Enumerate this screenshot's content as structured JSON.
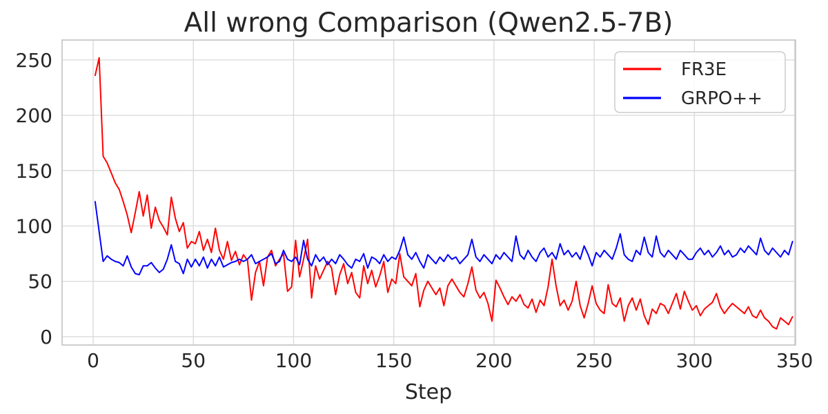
{
  "chart_data": {
    "type": "line",
    "title": "All wrong Comparison (Qwen2.5-7B)",
    "xlabel": "Step",
    "ylabel": "",
    "x_ticks": [
      0,
      50,
      100,
      150,
      200,
      250,
      300,
      350
    ],
    "y_ticks": [
      0,
      50,
      100,
      150,
      200,
      250
    ],
    "xlim": [
      -15.5,
      350.5
    ],
    "ylim": [
      -7.5,
      268
    ],
    "grid": true,
    "legend_position": "upper right",
    "x": [
      1,
      3,
      5,
      7,
      9,
      11,
      13,
      15,
      17,
      19,
      21,
      23,
      25,
      27,
      29,
      31,
      33,
      35,
      37,
      39,
      41,
      43,
      45,
      47,
      49,
      51,
      53,
      55,
      57,
      59,
      61,
      63,
      65,
      67,
      69,
      71,
      73,
      75,
      77,
      79,
      81,
      83,
      85,
      87,
      89,
      91,
      93,
      95,
      97,
      99,
      101,
      103,
      105,
      107,
      109,
      111,
      113,
      115,
      117,
      119,
      121,
      123,
      125,
      127,
      129,
      131,
      133,
      135,
      137,
      139,
      141,
      143,
      145,
      147,
      149,
      151,
      153,
      155,
      157,
      159,
      161,
      163,
      165,
      167,
      169,
      171,
      173,
      175,
      177,
      179,
      181,
      183,
      185,
      187,
      189,
      191,
      193,
      195,
      197,
      199,
      201,
      203,
      205,
      207,
      209,
      211,
      213,
      215,
      217,
      219,
      221,
      223,
      225,
      227,
      229,
      231,
      233,
      235,
      237,
      239,
      241,
      243,
      245,
      247,
      249,
      251,
      253,
      255,
      257,
      259,
      261,
      263,
      265,
      267,
      269,
      271,
      273,
      275,
      277,
      279,
      281,
      283,
      285,
      287,
      289,
      291,
      293,
      295,
      297,
      299,
      301,
      303,
      305,
      307,
      309,
      311,
      313,
      315,
      317,
      319,
      321,
      323,
      325,
      327,
      329,
      331,
      333,
      335,
      337,
      339,
      341,
      343,
      345,
      347,
      349
    ],
    "series": [
      {
        "name": "FR3E",
        "color": "#ff0000",
        "values": [
          236,
          252,
          163,
          157,
          148,
          139,
          133,
          122,
          110,
          94,
          112,
          131,
          109,
          128,
          98,
          117,
          105,
          99,
          92,
          126,
          107,
          95,
          103,
          80,
          86,
          84,
          95,
          78,
          88,
          76,
          98,
          78,
          70,
          86,
          69,
          77,
          65,
          74,
          69,
          33,
          58,
          68,
          46,
          72,
          78,
          64,
          70,
          75,
          41,
          45,
          87,
          54,
          70,
          88,
          35,
          64,
          52,
          60,
          68,
          62,
          38,
          56,
          66,
          48,
          58,
          40,
          35,
          64,
          48,
          60,
          45,
          55,
          68,
          40,
          52,
          48,
          75,
          54,
          50,
          46,
          57,
          27,
          42,
          50,
          44,
          38,
          44,
          28,
          46,
          52,
          46,
          40,
          36,
          48,
          63,
          42,
          35,
          40,
          30,
          14,
          51,
          44,
          36,
          29,
          36,
          32,
          38,
          29,
          26,
          34,
          22,
          33,
          28,
          45,
          70,
          46,
          28,
          33,
          24,
          32,
          50,
          28,
          17,
          30,
          46,
          30,
          24,
          21,
          47,
          30,
          27,
          35,
          14,
          28,
          35,
          24,
          34,
          19,
          11,
          25,
          21,
          30,
          28,
          21,
          30,
          39,
          25,
          41,
          32,
          24,
          28,
          19,
          25,
          28,
          31,
          39,
          27,
          21,
          26,
          30,
          27,
          24,
          21,
          27,
          19,
          17,
          24,
          17,
          14,
          9,
          7,
          17,
          14,
          11,
          18
        ]
      },
      {
        "name": "GRPO++",
        "color": "#0000ff",
        "values": [
          122,
          95,
          68,
          73,
          70,
          68,
          67,
          64,
          73,
          63,
          57,
          56,
          64,
          64,
          67,
          62,
          58,
          61,
          70,
          83,
          68,
          66,
          57,
          70,
          63,
          70,
          64,
          72,
          62,
          70,
          64,
          72,
          63,
          65,
          67,
          68,
          70,
          68,
          70,
          74,
          66,
          68,
          70,
          72,
          75,
          66,
          68,
          78,
          70,
          68,
          72,
          65,
          87,
          70,
          64,
          74,
          68,
          72,
          65,
          70,
          66,
          74,
          70,
          65,
          62,
          70,
          68,
          75,
          62,
          72,
          70,
          66,
          74,
          68,
          72,
          70,
          78,
          90,
          74,
          70,
          76,
          68,
          62,
          74,
          70,
          66,
          72,
          68,
          74,
          70,
          72,
          66,
          70,
          74,
          88,
          72,
          68,
          74,
          70,
          66,
          74,
          70,
          76,
          72,
          68,
          91,
          74,
          70,
          78,
          72,
          68,
          76,
          80,
          72,
          76,
          70,
          84,
          74,
          78,
          72,
          76,
          70,
          82,
          74,
          64,
          76,
          72,
          78,
          74,
          70,
          80,
          93,
          74,
          70,
          68,
          78,
          74,
          90,
          76,
          72,
          91,
          76,
          72,
          78,
          74,
          70,
          78,
          74,
          70,
          70,
          76,
          80,
          74,
          78,
          72,
          76,
          82,
          74,
          78,
          72,
          74,
          80,
          76,
          82,
          78,
          74,
          89,
          78,
          74,
          80,
          76,
          72,
          78,
          74,
          86
        ]
      }
    ]
  },
  "style": {
    "grid_color": "#d8d8d8",
    "spine_color": "#c9c9c9",
    "text_color": "#262626",
    "background_color": "#ffffff",
    "legend_border_color": "#cccccc"
  }
}
